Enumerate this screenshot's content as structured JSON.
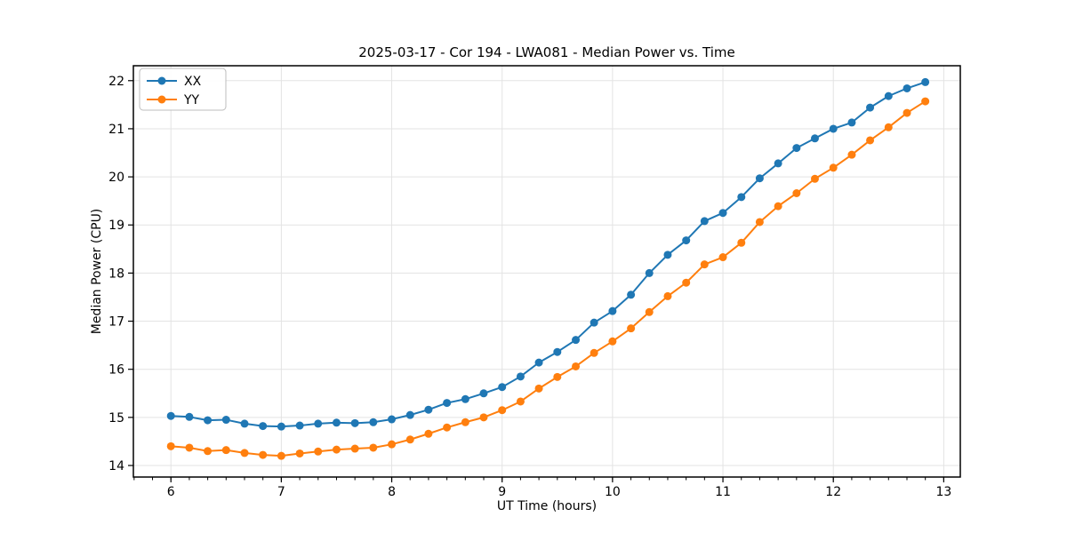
{
  "chart_data": {
    "type": "line",
    "title": "2025-03-17 - Cor 194 - LWA081 - Median Power vs. Time",
    "xlabel": "UT Time (hours)",
    "ylabel": "Median Power (CPU)",
    "xlim": [
      5.66,
      13.15
    ],
    "ylim": [
      13.76,
      22.31
    ],
    "x_ticks": [
      6,
      7,
      8,
      9,
      10,
      11,
      12,
      13
    ],
    "y_ticks": [
      14,
      15,
      16,
      17,
      18,
      19,
      20,
      21,
      22
    ],
    "x_minor_step": 0.166667,
    "grid": true,
    "grid_color": "#e3e3e3",
    "legend_position": "upper left",
    "x": [
      6.0,
      6.167,
      6.333,
      6.5,
      6.667,
      6.833,
      7.0,
      7.167,
      7.333,
      7.5,
      7.667,
      7.833,
      8.0,
      8.167,
      8.333,
      8.5,
      8.667,
      8.833,
      9.0,
      9.167,
      9.333,
      9.5,
      9.667,
      9.833,
      10.0,
      10.167,
      10.333,
      10.5,
      10.667,
      10.833,
      11.0,
      11.167,
      11.333,
      11.5,
      11.667,
      11.833,
      12.0,
      12.167,
      12.333,
      12.5,
      12.667,
      12.833
    ],
    "series": [
      {
        "name": "XX",
        "color": "#1f77b4",
        "values": [
          15.03,
          15.01,
          14.94,
          14.95,
          14.87,
          14.82,
          14.81,
          14.83,
          14.87,
          14.89,
          14.88,
          14.9,
          14.96,
          15.05,
          15.16,
          15.3,
          15.38,
          15.5,
          15.63,
          15.85,
          16.14,
          16.36,
          16.61,
          16.97,
          17.21,
          17.55,
          18.0,
          18.38,
          18.68,
          19.08,
          19.25,
          19.58,
          19.97,
          20.28,
          20.6,
          20.8,
          21.0,
          21.13,
          21.44,
          21.68,
          21.84,
          21.97
        ]
      },
      {
        "name": "YY",
        "color": "#ff7f0e",
        "values": [
          14.4,
          14.37,
          14.3,
          14.32,
          14.26,
          14.22,
          14.2,
          14.25,
          14.29,
          14.33,
          14.35,
          14.37,
          14.44,
          14.54,
          14.66,
          14.79,
          14.9,
          15.0,
          15.15,
          15.33,
          15.6,
          15.84,
          16.06,
          16.34,
          16.58,
          16.85,
          17.19,
          17.52,
          17.8,
          18.18,
          18.33,
          18.63,
          19.06,
          19.39,
          19.66,
          19.96,
          20.19,
          20.46,
          20.76,
          21.03,
          21.33,
          21.57
        ]
      }
    ]
  }
}
